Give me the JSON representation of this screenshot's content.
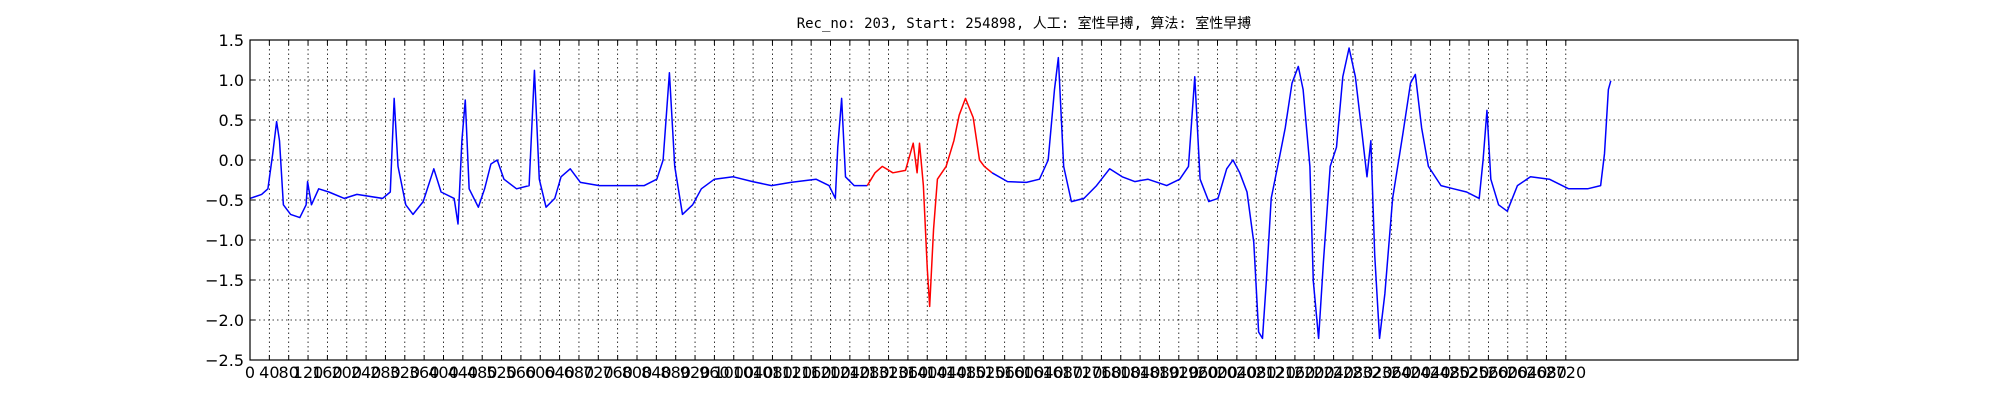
{
  "chart_data": {
    "type": "line",
    "title": "Rec_no: 203, Start: 254898, 人工: 室性早搏, 算法: 室性早搏",
    "series": [
      {
        "color": "#0000ff",
        "x": [
          0,
          24,
          37,
          47,
          55,
          61,
          69,
          84,
          103,
          116,
          119,
          127,
          142,
          163,
          195,
          221,
          274,
          290,
          298,
          306,
          322,
          337,
          358,
          380,
          395,
          422,
          430,
          438,
          445,
          453,
          472,
          485,
          498,
          511,
          525,
          551,
          577,
          588,
          598,
          612,
          630,
          643,
          662,
          683,
          722,
          749,
          788,
          815,
          841,
          854,
          867,
          878,
          894,
          915,
          933,
          960,
          999,
          1039,
          1078,
          1118,
          1170,
          1197,
          1210,
          1215,
          1223,
          1231,
          1249,
          1276
        ],
        "values": [
          -0.48,
          -0.43,
          -0.36,
          0.08,
          0.48,
          0.24,
          -0.56,
          -0.68,
          -0.72,
          -0.56,
          -0.27,
          -0.56,
          -0.36,
          -0.4,
          -0.48,
          -0.43,
          -0.48,
          -0.4,
          0.77,
          -0.08,
          -0.56,
          -0.68,
          -0.52,
          -0.11,
          -0.4,
          -0.48,
          -0.8,
          0.24,
          0.75,
          -0.36,
          -0.59,
          -0.36,
          -0.05,
          0.0,
          -0.24,
          -0.36,
          -0.32,
          1.12,
          -0.24,
          -0.59,
          -0.48,
          -0.21,
          -0.11,
          -0.28,
          -0.32,
          -0.32,
          -0.32,
          -0.32,
          -0.24,
          0.0,
          1.09,
          -0.08,
          -0.68,
          -0.56,
          -0.36,
          -0.24,
          -0.21,
          -0.27,
          -0.32,
          -0.28,
          -0.24,
          -0.32,
          -0.48,
          0.16,
          0.77,
          -0.21,
          -0.32,
          -0.32
        ]
      },
      {
        "color": "#ff0000",
        "x": [
          1276,
          1292,
          1307,
          1329,
          1355,
          1371,
          1379,
          1384,
          1392,
          1400,
          1405,
          1413,
          1421,
          1439,
          1455,
          1466,
          1479,
          1495,
          1508,
          1518,
          1534
        ],
        "values": [
          -0.32,
          -0.16,
          -0.08,
          -0.16,
          -0.13,
          0.21,
          -0.16,
          0.21,
          -0.32,
          -1.35,
          -1.83,
          -0.87,
          -0.24,
          -0.08,
          0.24,
          0.56,
          0.77,
          0.53,
          0.0,
          -0.08,
          -0.16
        ]
      },
      {
        "color": "#0000ff",
        "x": [
          1534,
          1566,
          1605,
          1632,
          1650,
          1663,
          1671,
          1682,
          1698,
          1724,
          1750,
          1777,
          1803,
          1829,
          1856,
          1895,
          1922,
          1940,
          1953,
          1964,
          1982,
          2001,
          2019,
          2032,
          2046,
          2061,
          2075,
          2085,
          2093,
          2101,
          2111,
          2127,
          2140,
          2154,
          2167,
          2177,
          2191,
          2198,
          2209,
          2219,
          2233,
          2246,
          2259,
          2272,
          2285,
          2299,
          2309,
          2317,
          2325,
          2335,
          2346,
          2362,
          2383,
          2399,
          2409,
          2422,
          2436,
          2462,
          2488,
          2515,
          2541,
          2549,
          2557,
          2565,
          2581,
          2599,
          2620,
          2647,
          2686,
          2726,
          2765,
          2792,
          2800,
          2808,
          2813
        ],
        "values": [
          -0.16,
          -0.27,
          -0.28,
          -0.24,
          0.0,
          0.88,
          1.28,
          -0.08,
          -0.52,
          -0.48,
          -0.32,
          -0.11,
          -0.21,
          -0.27,
          -0.24,
          -0.32,
          -0.24,
          -0.08,
          1.04,
          -0.24,
          -0.52,
          -0.48,
          -0.11,
          0.0,
          -0.16,
          -0.4,
          -1.03,
          -2.15,
          -2.23,
          -1.51,
          -0.48,
          0.0,
          0.4,
          0.96,
          1.17,
          0.88,
          -0.08,
          -1.51,
          -2.23,
          -1.27,
          -0.08,
          0.16,
          1.04,
          1.4,
          1.04,
          0.32,
          -0.21,
          0.24,
          -1.19,
          -2.23,
          -1.67,
          -0.48,
          0.32,
          0.96,
          1.07,
          0.4,
          -0.08,
          -0.32,
          -0.36,
          -0.4,
          -0.48,
          0.0,
          0.62,
          -0.24,
          -0.56,
          -0.64,
          -0.32,
          -0.21,
          -0.24,
          -0.36,
          -0.36,
          -0.32,
          0.08,
          0.88,
          0.99
        ]
      }
    ],
    "xlim": [
      0,
      3200
    ],
    "xticks": [
      0,
      40,
      80,
      120,
      160,
      200,
      240,
      280,
      320,
      360,
      400,
      440,
      480,
      520,
      560,
      600,
      640,
      680,
      720,
      760,
      800,
      840,
      880,
      920,
      960,
      1000,
      1040,
      1080,
      1120,
      1160,
      1200,
      1240,
      1280,
      1320,
      1360,
      1400,
      1440,
      1480,
      1520,
      1560,
      1600,
      1640,
      1680,
      1720,
      1760,
      1800,
      1840,
      1880,
      1920,
      1960,
      2000,
      2040,
      2080,
      2120,
      2160,
      2200,
      2240,
      2280,
      2320,
      2360,
      2400,
      2440,
      2480,
      2520,
      2560,
      2600,
      2640,
      2680,
      2720
    ],
    "ylim": [
      -2.5,
      1.5
    ],
    "yticks": [
      {
        "value": -2.5,
        "label": "−2.5"
      },
      {
        "value": -2,
        "label": "−2.0"
      },
      {
        "value": -1.5,
        "label": "−1.5"
      },
      {
        "value": -1,
        "label": "−1.0"
      },
      {
        "value": -0.5,
        "label": "−0.5"
      },
      {
        "value": 0,
        "label": "0.0"
      },
      0.5,
      {
        "value": 1,
        "label": "1.0"
      },
      1.5
    ],
    "grid": true
  }
}
